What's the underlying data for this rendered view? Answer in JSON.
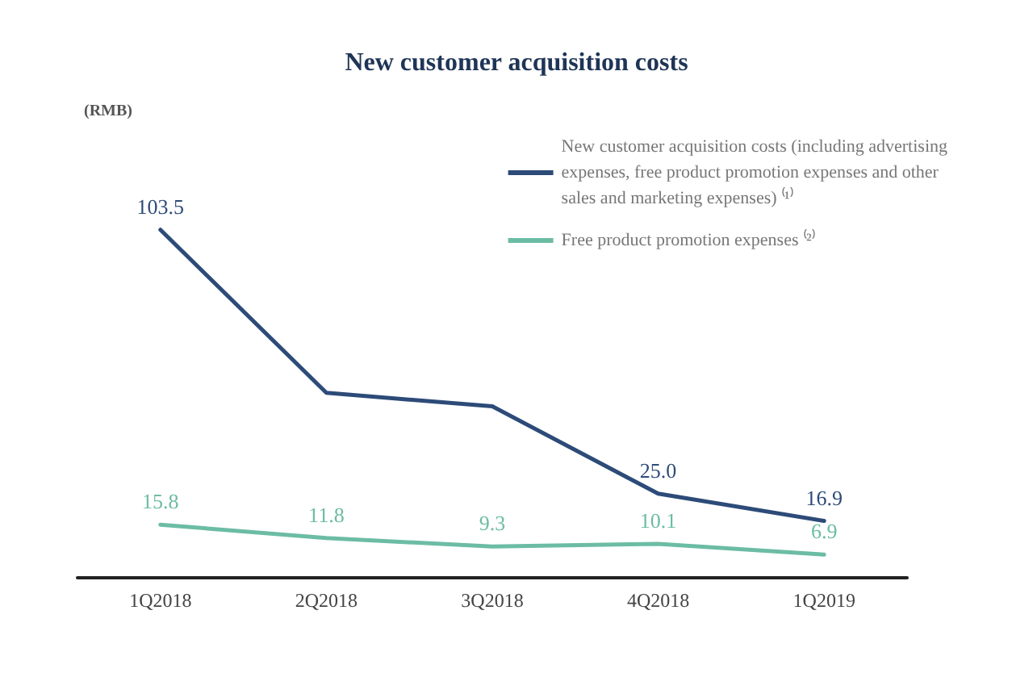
{
  "chart_data": {
    "type": "line",
    "title": "New customer acquisition costs",
    "annotations": [
      "(RMB)"
    ],
    "categories": [
      "1Q2018",
      "2Q2018",
      "3Q2018",
      "4Q2018",
      "1Q2019"
    ],
    "series": [
      {
        "name": "New customer acquisition costs (including advertising\nexpenses, free product promotion expenses and other\nsales and marketing expenses) ⁽¹⁾",
        "color": "#2d4b78",
        "values": [
          103.5,
          55,
          51,
          25.0,
          16.9
        ],
        "value_labels": [
          "103.5",
          null,
          null,
          "25.0",
          "16.9"
        ]
      },
      {
        "name": "Free product promotion expenses ⁽²⁾",
        "color": "#6cbca4",
        "values": [
          15.8,
          11.8,
          9.3,
          10.1,
          6.9
        ],
        "value_labels": [
          "15.8",
          "11.8",
          "9.3",
          "10.1",
          "6.9"
        ]
      }
    ],
    "tick_labels": "x",
    "grid": false,
    "legend": "top right",
    "marker": "none",
    "line_style": "solid"
  }
}
